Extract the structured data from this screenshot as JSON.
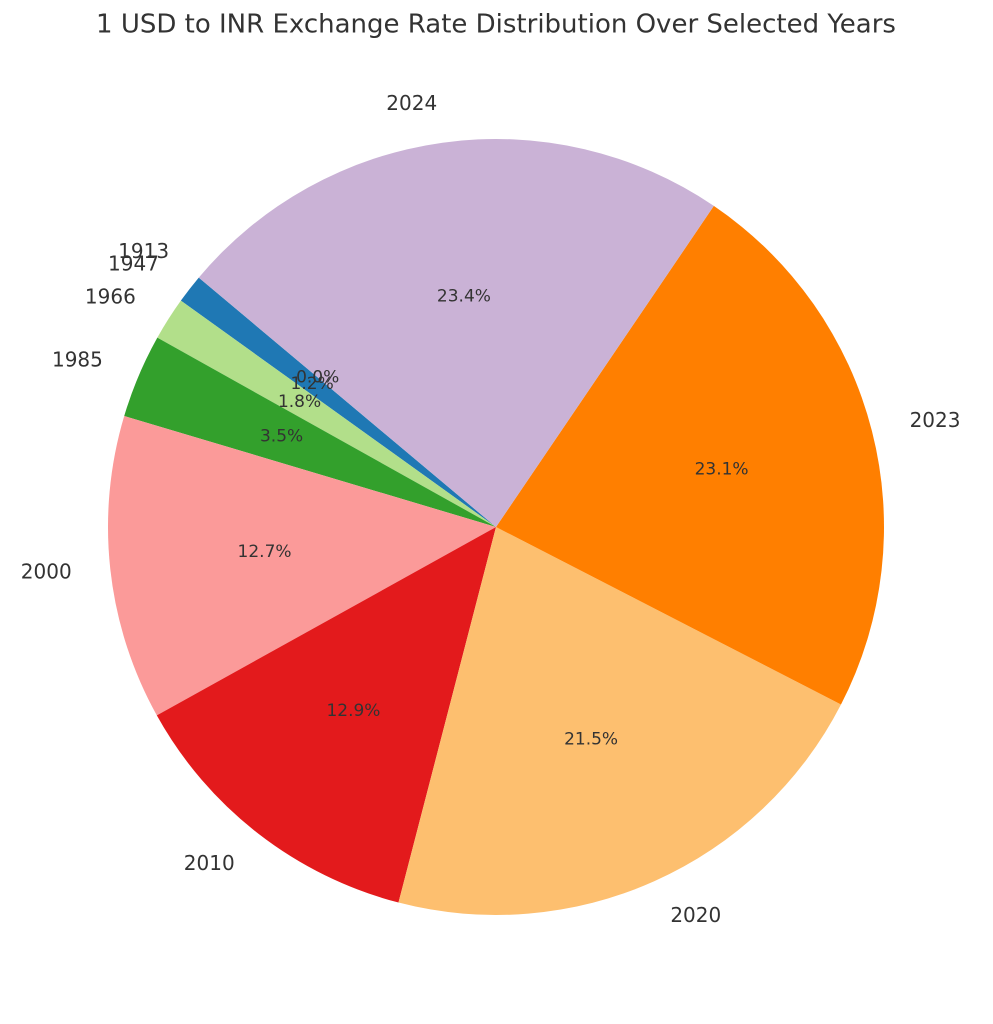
{
  "chart_data": {
    "type": "pie",
    "title": "1 USD to INR Exchange Rate Distribution Over Selected Years",
    "categories": [
      "1913",
      "1947",
      "1966",
      "1985",
      "2000",
      "2010",
      "2020",
      "2023",
      "2024"
    ],
    "values": [
      0.0,
      1.2,
      1.8,
      3.5,
      12.7,
      12.9,
      21.5,
      23.1,
      23.4
    ],
    "value_labels": [
      "0.0%",
      "1.2%",
      "1.8%",
      "3.5%",
      "12.7%",
      "12.9%",
      "21.5%",
      "23.1%",
      "23.4%"
    ],
    "colors": [
      "#a6cee3",
      "#1f78b4",
      "#b2df8a",
      "#33a02c",
      "#fb9a99",
      "#e31a1c",
      "#fdbf6f",
      "#ff7f00",
      "#cab2d6"
    ]
  }
}
